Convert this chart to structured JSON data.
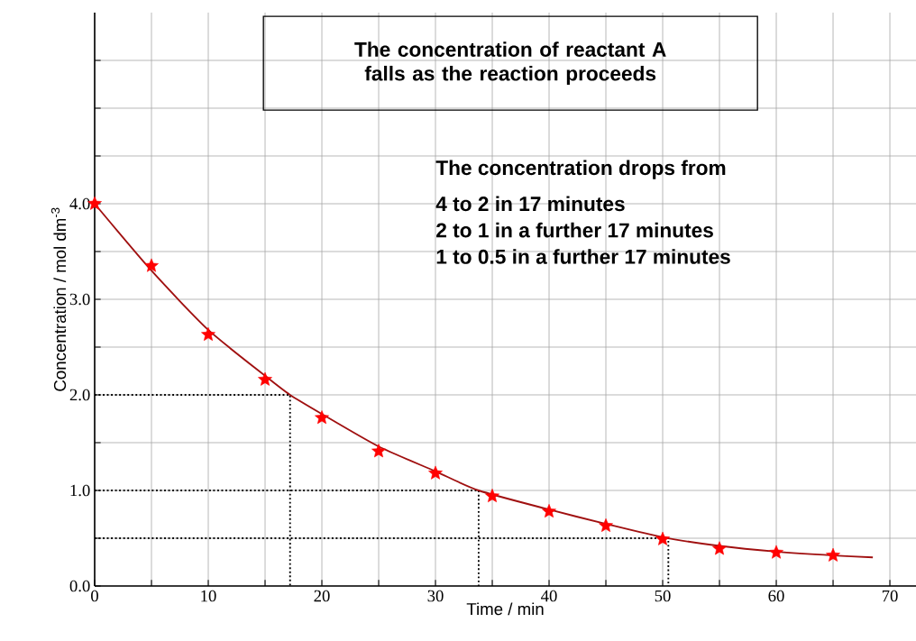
{
  "chart_data": {
    "type": "scatter",
    "title": "The concentration of reactant A falls as the reaction proceeds",
    "xlabel": "Time / min",
    "ylabel": "Concentration / mol dm$^{-3}$",
    "annotations": [
      "The concentration drops from",
      "4 to 2 in 17 minutes",
      "2 to 1 in a further 17 minutes",
      "1 to 0.5 in a further  17 minutes"
    ],
    "xlim": [
      0,
      72.3
    ],
    "ylim": [
      0,
      6.0
    ],
    "xticks": [
      0,
      {
        "value": 5,
        "label": null
      },
      10,
      {
        "value": 15,
        "label": null
      },
      20,
      {
        "value": 25,
        "label": null
      },
      30,
      {
        "value": 35,
        "label": null
      },
      40,
      {
        "value": 45,
        "label": null
      },
      50,
      {
        "value": 55,
        "label": null
      },
      60,
      {
        "value": 65,
        "label": null
      },
      70
    ],
    "yticks": [
      {
        "value": 0,
        "label": "0.0"
      },
      {
        "value": 0.5,
        "label": null
      },
      {
        "value": 1,
        "label": "1.0"
      },
      {
        "value": 1.5,
        "label": null
      },
      {
        "value": 2,
        "label": "2.0"
      },
      {
        "value": 2.5,
        "label": null
      },
      {
        "value": 3,
        "label": "3.0"
      },
      {
        "value": 3.5,
        "label": null
      },
      {
        "value": 4,
        "label": "4.0"
      },
      {
        "value": 4.5,
        "label": null
      },
      {
        "value": 5,
        "label": null
      },
      {
        "value": 5.5,
        "label": null
      }
    ],
    "grid": true,
    "series": [
      {
        "type": "line",
        "color": "#000000",
        "line_style": "dotted",
        "marker": "none",
        "x": [
          0,
          17.2,
          17.2
        ],
        "values": [
          2,
          2,
          0
        ]
      },
      {
        "type": "line",
        "color": "#000000",
        "line_style": "dotted",
        "marker": "none",
        "x": [
          0,
          33.8,
          33.8
        ],
        "values": [
          1,
          1,
          0
        ]
      },
      {
        "type": "line",
        "color": "#000000",
        "line_style": "dotted",
        "marker": "none",
        "x": [
          0,
          50.5,
          50.5
        ],
        "values": [
          0.5,
          0.5,
          0
        ]
      },
      {
        "type": "line",
        "color": "#a01010",
        "line_style": "solid",
        "marker": "none",
        "x": [
          0,
          5,
          10,
          15,
          17.2,
          20,
          25,
          30,
          33.8,
          40,
          45,
          50,
          55,
          60,
          65,
          68.5
        ],
        "values": [
          4.0,
          3.3,
          2.68,
          2.2,
          2.0,
          1.8,
          1.46,
          1.2,
          1.0,
          0.8,
          0.65,
          0.51,
          0.42,
          0.36,
          0.32,
          0.3
        ]
      },
      {
        "color": "#ff0000",
        "marker": "star",
        "x": [
          0,
          5,
          10,
          15,
          20,
          25,
          30,
          35,
          40,
          45,
          50,
          55,
          60,
          65
        ],
        "values": [
          4.0,
          3.35,
          2.63,
          2.16,
          1.76,
          1.41,
          1.18,
          0.94,
          0.78,
          0.63,
          0.49,
          0.39,
          0.35,
          0.32
        ]
      }
    ]
  }
}
